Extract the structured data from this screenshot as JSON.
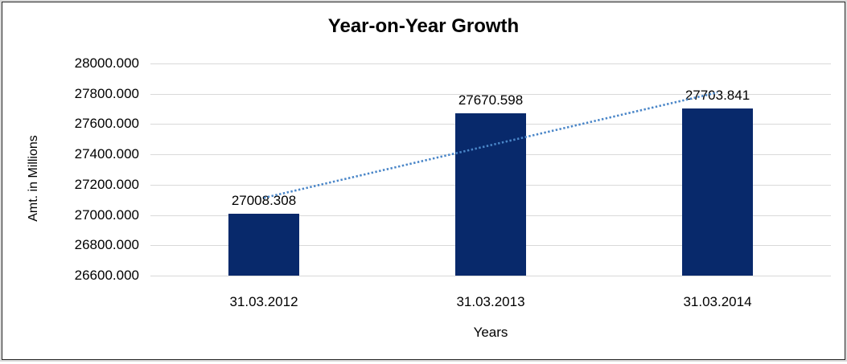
{
  "chart": {
    "title": "Year-on-Year Growth",
    "y_axis_title": "Amt. in Millions",
    "x_axis_title": "Years"
  },
  "chart_data": {
    "type": "bar",
    "title": "Year-on-Year Growth",
    "categories": [
      "31.03.2012",
      "31.03.2013",
      "31.03.2014"
    ],
    "values": [
      27008.308,
      27670.598,
      27703.841
    ],
    "data_labels": [
      "27008.308",
      "27670.598",
      "27703.841"
    ],
    "xlabel": "Years",
    "ylabel": "Amt. in Millions",
    "ylim": [
      26600,
      28000
    ],
    "ytick_step": 200,
    "ytick_labels": [
      "28000.000",
      "27800.000",
      "27600.000",
      "27400.000",
      "27200.000",
      "27000.000",
      "26800.000",
      "26600.000"
    ],
    "grid": true,
    "legend": false,
    "trendline": {
      "type": "linear",
      "style": "dotted"
    },
    "colors": {
      "bar": "#08296b",
      "trendline": "#4a86c8",
      "gridline": "#d9d9d9",
      "text": "#000000",
      "border": "#262626",
      "outer_border": "#d9d9d9"
    }
  }
}
